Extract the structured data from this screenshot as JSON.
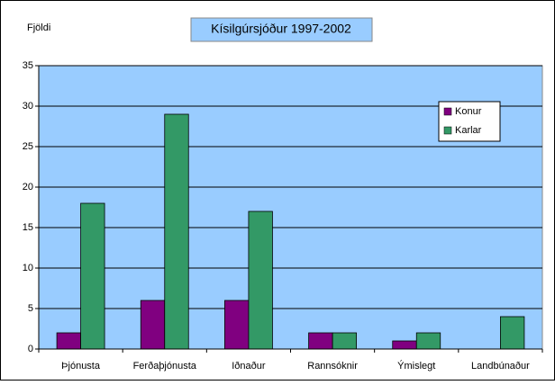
{
  "chart_data": {
    "type": "bar",
    "title": "Kísilgúrsjóður 1997-2002",
    "y_label": "Fjöldi",
    "categories": [
      "Þjónusta",
      "Ferðaþjónusta",
      "Iðnaður",
      "Rannsóknir",
      "Ýmislegt",
      "Landbúnaður"
    ],
    "series": [
      {
        "name": "Konur",
        "color": "#800080",
        "values": [
          2,
          6,
          6,
          2,
          1,
          0
        ]
      },
      {
        "name": "Karlar",
        "color": "#339966",
        "values": [
          18,
          29,
          17,
          2,
          2,
          4
        ]
      }
    ],
    "ylim": [
      0,
      35
    ],
    "yticks": [
      0,
      5,
      10,
      15,
      20,
      25,
      30,
      35
    ],
    "grid": true,
    "legend": "top-right",
    "plot_background": "#99ccff"
  }
}
